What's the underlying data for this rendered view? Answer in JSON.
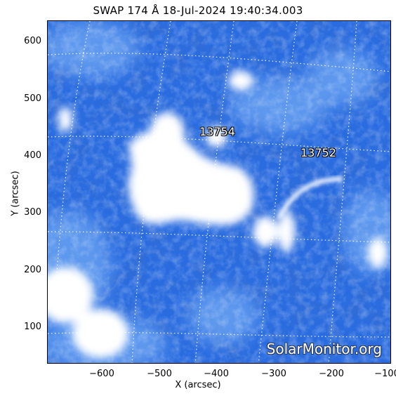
{
  "title": "SWAP 174 Å 18-Jul-2024 19:40:34.003",
  "axes": {
    "xlabel": "X (arcsec)",
    "ylabel": "Y (arcsec)",
    "xticks": [
      "−600",
      "−500",
      "−400",
      "−300",
      "−200",
      "−100"
    ],
    "yticks": [
      "600",
      "500",
      "400",
      "300",
      "200",
      "100"
    ]
  },
  "regions": [
    "13754",
    "13752"
  ],
  "watermark": "SolarMonitor.org",
  "colors": {
    "background": "#1d5cd6",
    "bright": "#ffffff",
    "grid": "#ffffff"
  }
}
